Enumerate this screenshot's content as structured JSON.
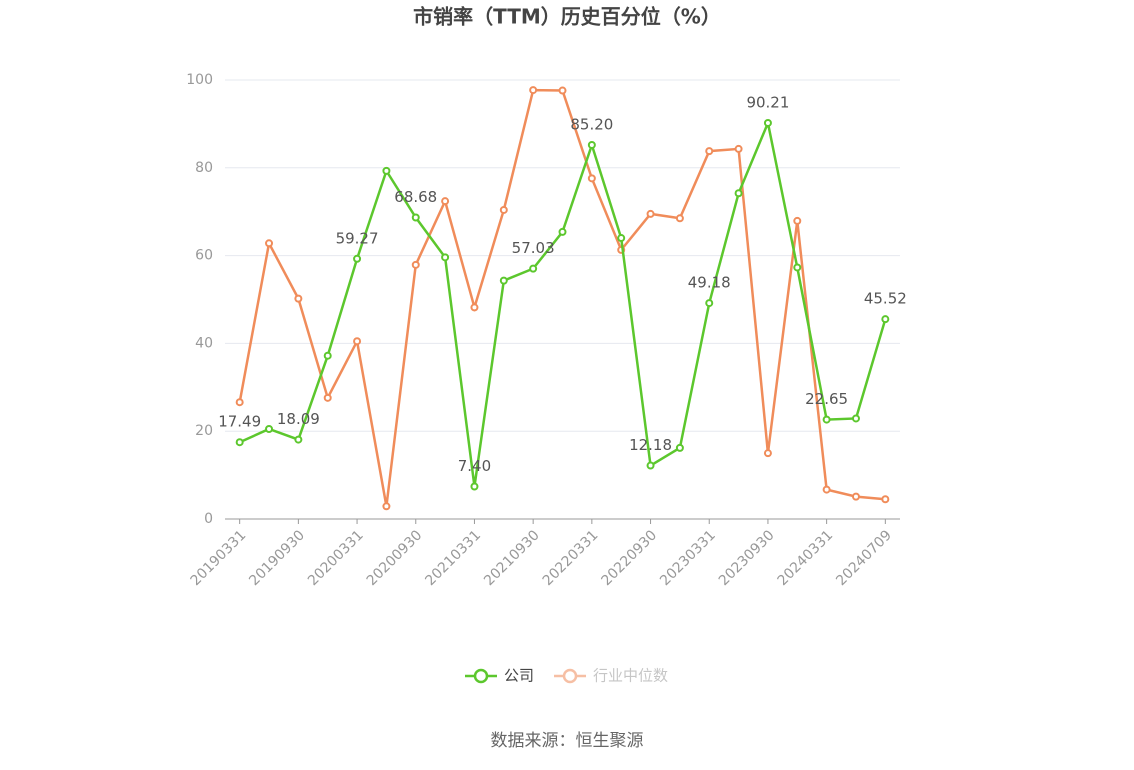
{
  "chart_data": {
    "type": "line",
    "title": "市销率（TTM）历史百分位（%）",
    "categories": [
      "20190331",
      null,
      "20190930",
      null,
      "20200331",
      null,
      "20200930",
      null,
      "20210331",
      null,
      "20210930",
      null,
      "20220331",
      null,
      "20220930",
      null,
      "20230331",
      null,
      "20230930",
      null,
      "20240331",
      null,
      "20240709"
    ],
    "series": [
      {
        "name": "公司",
        "color": "#5cc72d",
        "values": [
          17.49,
          20.5,
          18.09,
          37.2,
          59.27,
          79.3,
          68.68,
          59.6,
          7.4,
          54.3,
          57.03,
          65.4,
          85.2,
          64.0,
          12.18,
          16.2,
          49.18,
          74.2,
          90.21,
          57.3,
          22.65,
          22.9,
          45.52
        ],
        "value_labels": [
          "17.49",
          null,
          "18.09",
          null,
          "59.27",
          null,
          "68.68",
          null,
          "7.40",
          null,
          "57.03",
          null,
          "85.20",
          null,
          "12.18",
          null,
          "49.18",
          null,
          "90.21",
          null,
          "22.65",
          null,
          "45.52"
        ]
      },
      {
        "name": "行业中位数",
        "color": "#f08c5a",
        "values": [
          26.6,
          62.8,
          50.2,
          27.6,
          40.5,
          2.9,
          57.9,
          72.4,
          48.2,
          70.4,
          97.7,
          97.6,
          77.6,
          61.3,
          69.5,
          68.5,
          83.8,
          84.3,
          15.0,
          67.9,
          6.7,
          5.1,
          4.5
        ]
      }
    ],
    "ylim": [
      0,
      100
    ],
    "yticks": [
      0,
      20,
      40,
      60,
      80,
      100
    ],
    "grid": true,
    "legend": "bottom",
    "source": "数据来源：恒生聚源"
  }
}
